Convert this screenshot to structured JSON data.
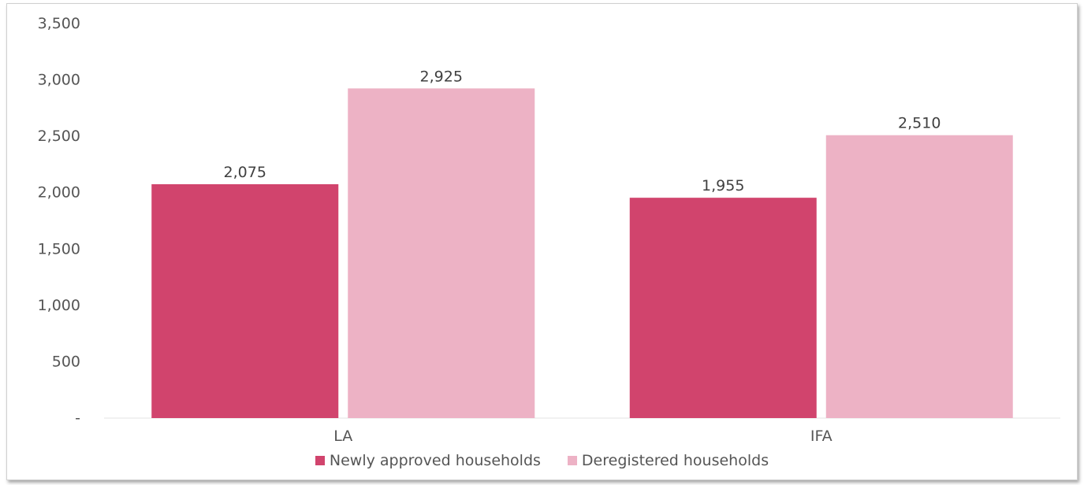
{
  "chart_data": {
    "type": "bar",
    "categories": [
      "LA",
      "IFA"
    ],
    "series": [
      {
        "name": "Newly approved households",
        "values": [
          2075,
          1955
        ],
        "color": "#d1446d"
      },
      {
        "name": "Deregistered households",
        "values": [
          2925,
          2510
        ],
        "color": "#edb2c5"
      }
    ],
    "data_labels": [
      [
        "2,075",
        "1,955"
      ],
      [
        "2,925",
        "2,510"
      ]
    ],
    "ylim": [
      0,
      3500
    ],
    "yticks": [
      0,
      500,
      1000,
      1500,
      2000,
      2500,
      3000,
      3500
    ],
    "ytick_labels": [
      "-",
      "500",
      "1,000",
      "1,500",
      "2,000",
      "2,500",
      "3,000",
      "3,500"
    ],
    "title": "",
    "xlabel": "",
    "ylabel": "",
    "grid": false,
    "legend_position": "bottom"
  }
}
